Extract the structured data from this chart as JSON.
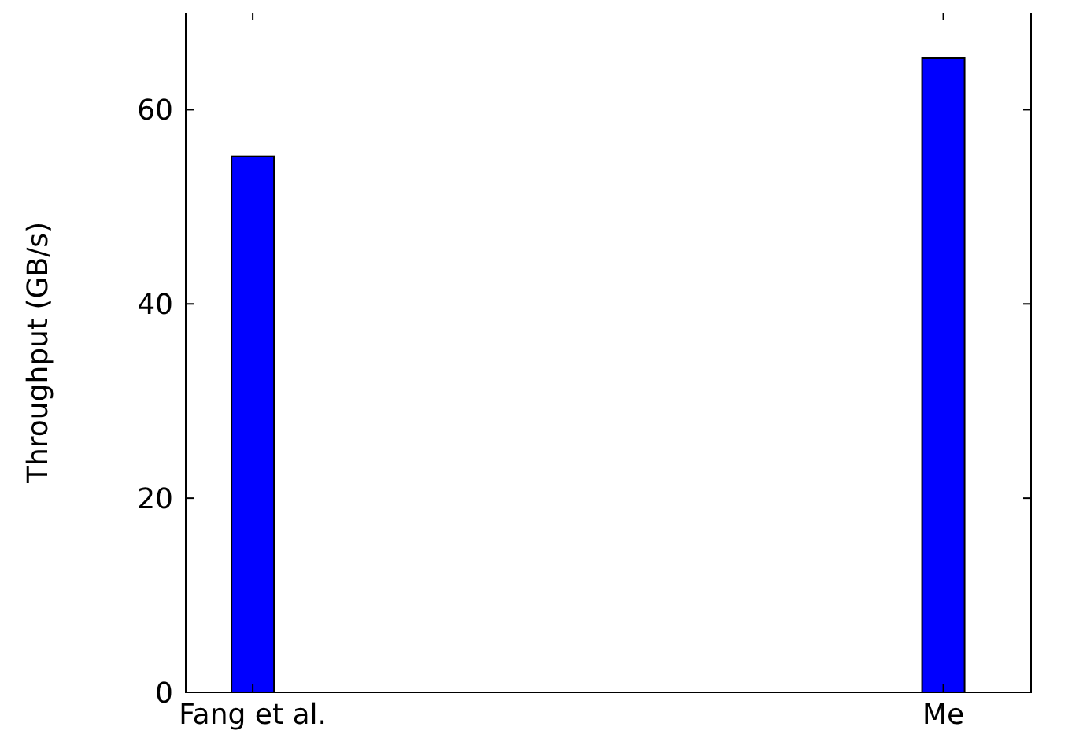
{
  "chart_data": {
    "type": "bar",
    "ylabel": "Throughput (GB/s)",
    "categories": [
      "Fang et al.",
      "Me"
    ],
    "values": [
      55.2,
      65.3
    ],
    "color": "#0000ff",
    "ylim": [
      0,
      70
    ],
    "yticks": [
      0,
      20,
      40,
      60
    ],
    "grid": false
  }
}
